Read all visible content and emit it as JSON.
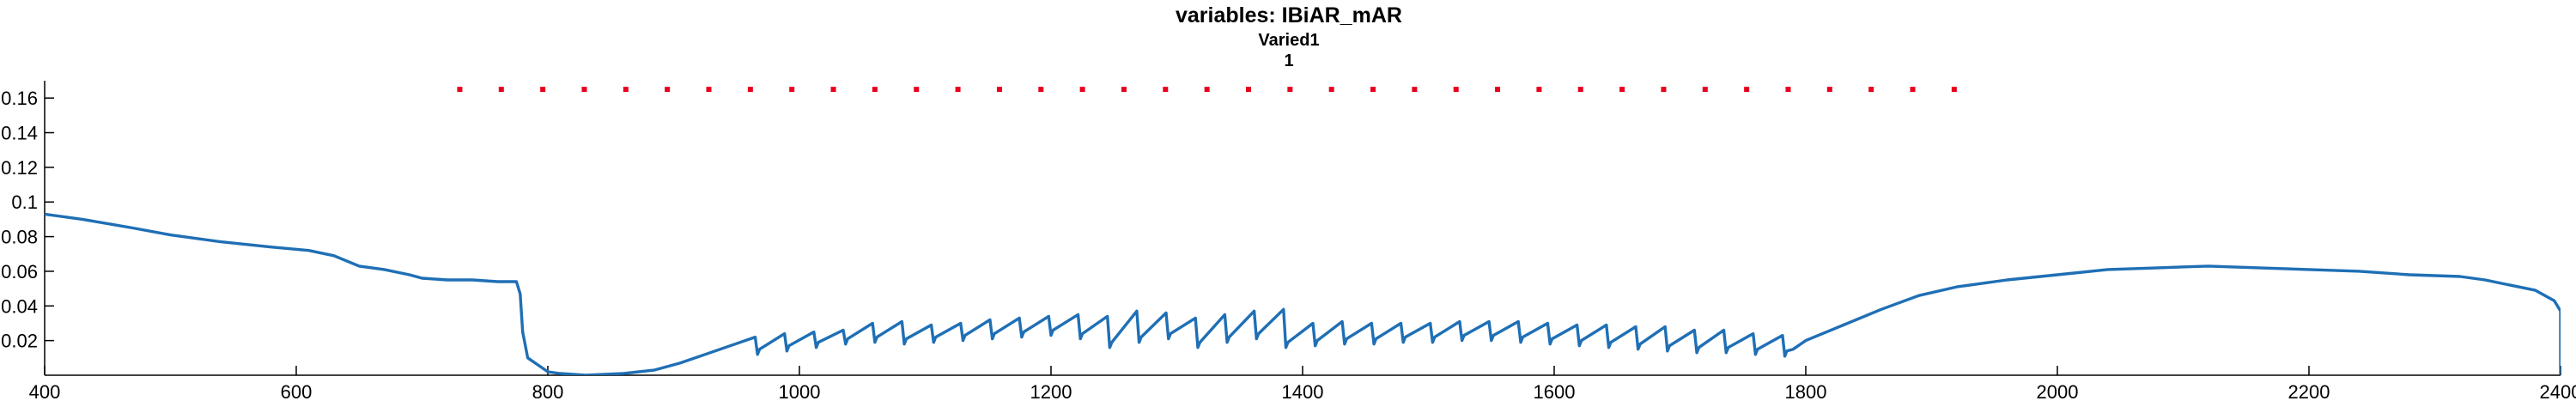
{
  "chart_data": {
    "type": "line",
    "title": "variables: IBiAR_mAR",
    "subtitle": "Varied1",
    "subtitle2": "1",
    "xlabel": "",
    "ylabel": "",
    "xlim": [
      400,
      2400
    ],
    "ylim": [
      0,
      0.17
    ],
    "x_ticks": [
      400,
      600,
      800,
      1000,
      1200,
      1400,
      1600,
      1800,
      2000,
      2200,
      2400
    ],
    "x_tick_labels": [
      "400",
      "600",
      "800",
      "1000",
      "1200",
      "1400",
      "1600",
      "1800",
      "2000",
      "2200",
      "2400"
    ],
    "y_ticks": [
      0.02,
      0.04,
      0.06,
      0.08,
      0.1,
      0.12,
      0.14,
      0.16
    ],
    "y_tick_labels": [
      "0.02",
      "0.04",
      "0.06",
      "0.08",
      "0.1",
      "0.12",
      "0.14",
      "0.16"
    ],
    "grid": false,
    "colors": {
      "line": "#1f6fb5",
      "markers": "#e8001c",
      "axis": "#000000"
    },
    "series": [
      {
        "style": "line",
        "points": [
          [
            400,
            0.093
          ],
          [
            430,
            0.09
          ],
          [
            470,
            0.085
          ],
          [
            500,
            0.081
          ],
          [
            540,
            0.077
          ],
          [
            580,
            0.074
          ],
          [
            610,
            0.072
          ],
          [
            630,
            0.069
          ],
          [
            650,
            0.063
          ],
          [
            670,
            0.061
          ],
          [
            690,
            0.058
          ],
          [
            700,
            0.056
          ],
          [
            720,
            0.055
          ],
          [
            740,
            0.055
          ],
          [
            760,
            0.054
          ],
          [
            775,
            0.054
          ],
          [
            778,
            0.047
          ],
          [
            780,
            0.025
          ],
          [
            784,
            0.01
          ],
          [
            792,
            0.006
          ],
          [
            800,
            0.002
          ],
          [
            810,
            0.001
          ],
          [
            830,
            0.0
          ],
          [
            860,
            0.001
          ],
          [
            885,
            0.003
          ],
          [
            905,
            0.007
          ],
          [
            925,
            0.012
          ],
          [
            945,
            0.017
          ]
        ]
      },
      {
        "style": "markers",
        "x": [
          730,
          763,
          796,
          829,
          862,
          895,
          928,
          961,
          994,
          1027,
          1060,
          1093,
          1126,
          1159,
          1192,
          1225,
          1258,
          1291,
          1324,
          1357,
          1390,
          1423,
          1456,
          1489,
          1522,
          1555,
          1588,
          1621,
          1654,
          1687,
          1720,
          1753,
          1786,
          1819,
          1852,
          1885,
          1918
        ],
        "y": 0.165
      }
    ]
  }
}
